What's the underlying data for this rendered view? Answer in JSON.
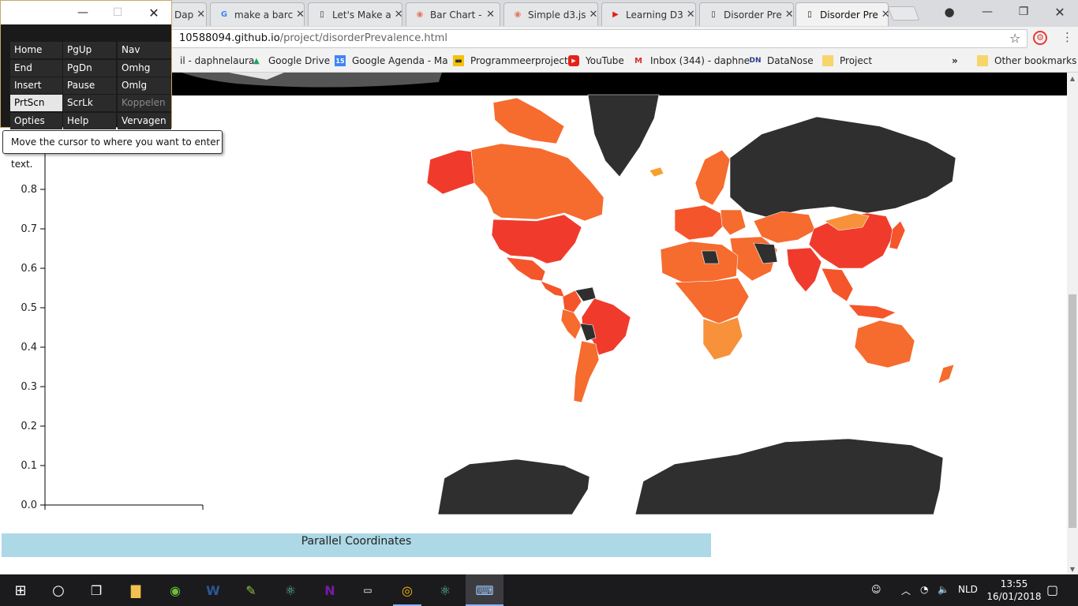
{
  "browser": {
    "tabs": [
      {
        "title": "Dap",
        "icon": "generic",
        "active": false
      },
      {
        "title": "make a barc",
        "icon": "google",
        "active": false
      },
      {
        "title": "Let's Make a",
        "icon": "page",
        "active": false
      },
      {
        "title": "Bar Chart -",
        "icon": "d3",
        "active": false
      },
      {
        "title": "Simple d3.js",
        "icon": "d3",
        "active": false
      },
      {
        "title": "Learning D3",
        "icon": "youtube",
        "active": false
      },
      {
        "title": "Disorder Pre",
        "icon": "page",
        "active": false
      },
      {
        "title": "Disorder Pre",
        "icon": "page",
        "active": true
      }
    ],
    "url_host": "10588094.github.io",
    "url_path": "/project/disorderPrevalence.html",
    "bookmarks": [
      {
        "label": "il - daphnelaura",
        "icon": "gmail"
      },
      {
        "label": "Google Drive",
        "icon": "drive"
      },
      {
        "label": "Google Agenda - Ma",
        "icon": "calendar"
      },
      {
        "label": "Programmeerproject",
        "icon": "folder-yellow"
      },
      {
        "label": "YouTube",
        "icon": "youtube"
      },
      {
        "label": "Inbox (344) - daphne",
        "icon": "gmail"
      },
      {
        "label": "DataNose",
        "icon": "datanose"
      },
      {
        "label": "Project",
        "icon": "folder"
      }
    ],
    "bookmarks_overflow": "»",
    "other_bookmarks": "Other bookmarks"
  },
  "page": {
    "y_axis_ticks": [
      "0.0",
      "0.1",
      "0.2",
      "0.3",
      "0.4",
      "0.5",
      "0.6",
      "0.7",
      "0.8"
    ],
    "parallel_coordinates_label": "Parallel Coordinates",
    "colors": {
      "red": "#f03b2c",
      "orange_red": "#f5552b",
      "orange": "#f66b2e",
      "light_orange": "#f7913a",
      "no_data": "#2f2f2f",
      "pc_bar": "#add8e6"
    }
  },
  "osk": {
    "keys": [
      [
        "Home",
        "PgUp",
        "Nav"
      ],
      [
        "End",
        "PgDn",
        "Omhg"
      ],
      [
        "Insert",
        "Pause",
        "Omlg"
      ],
      [
        "PrtScn",
        "ScrLk",
        "Koppelen"
      ],
      [
        "Opties",
        "Help",
        "Vervagen"
      ]
    ],
    "pressed_key": "PrtScn",
    "disabled_key": "Koppelen",
    "tooltip": "Move the cursor to where you want to enter text."
  },
  "taskbar": {
    "language": "NLD",
    "time": "13:55",
    "date": "16/01/2018"
  }
}
